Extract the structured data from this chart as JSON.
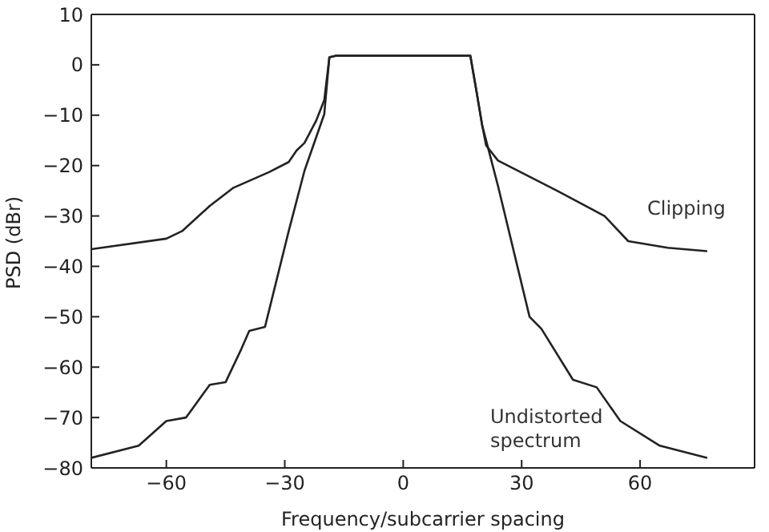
{
  "chart_data": {
    "type": "line",
    "xlabel": "Frequency/subcarrier spacing",
    "ylabel": "PSD (dBr)",
    "xlim": [
      -79,
      89
    ],
    "ylim": [
      -80,
      10
    ],
    "xticks": [
      -60,
      -30,
      0,
      30,
      60
    ],
    "yticks": [
      -80,
      -70,
      -60,
      -50,
      -40,
      -30,
      -20,
      -10,
      0,
      10
    ],
    "grid": false,
    "marker": "none",
    "line_style": "solid",
    "series": [
      {
        "color": "#222222",
        "x": [
          -79,
          -67,
          -60,
          -55,
          -49,
          -45,
          -41,
          -39,
          -35,
          -29,
          -25,
          -20,
          -18.7,
          -17,
          0,
          17,
          18.5,
          20,
          24,
          28,
          32,
          35,
          43,
          49,
          55,
          65,
          77
        ],
        "values": [
          -78,
          -75.6,
          -70.7,
          -70,
          -63.5,
          -63,
          -56.4,
          -52.8,
          -52,
          -33,
          -21,
          -9.8,
          1.5,
          1.8,
          1.8,
          1.8,
          -5,
          -12,
          -24,
          -37,
          -50,
          -52.4,
          -62.5,
          -64,
          -70.7,
          -75.6,
          -78
        ]
      },
      {
        "color": "#222222",
        "x": [
          -79,
          -60,
          -56,
          -49,
          -43,
          -34,
          -29,
          -27,
          -25,
          -22,
          -20,
          -18.7,
          -17,
          0,
          17,
          18.5,
          20,
          21,
          24,
          39,
          51,
          57,
          67,
          77
        ],
        "values": [
          -36.6,
          -34.5,
          -33,
          -28,
          -24.4,
          -21.3,
          -19.3,
          -17,
          -15.5,
          -11,
          -7,
          1.5,
          1.8,
          1.8,
          1.8,
          -5,
          -12,
          -16,
          -19,
          -25,
          -30,
          -35,
          -36.3,
          -37
        ]
      }
    ],
    "annotations": [
      "Clipping",
      "Undistorted\nspectrum"
    ]
  }
}
